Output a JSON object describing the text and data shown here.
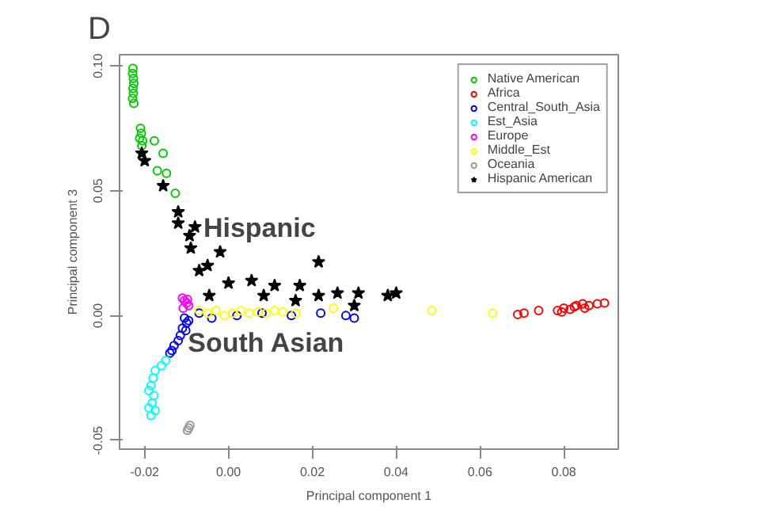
{
  "chart_data": {
    "type": "scatter",
    "title": "D",
    "xlabel": "Principal component 1",
    "ylabel": "Principal component 3",
    "xlim": [
      -0.026,
      0.093
    ],
    "ylim": [
      -0.0535,
      0.1045
    ],
    "xticks": [
      {
        "value": -0.02,
        "label": "-0.02"
      },
      {
        "value": 0,
        "label": "0.00"
      },
      {
        "value": 0.02,
        "label": "0.02"
      },
      {
        "value": 0.04,
        "label": "0.04"
      },
      {
        "value": 0.06,
        "label": "0.06"
      },
      {
        "value": 0.08,
        "label": "0.08"
      }
    ],
    "yticks": [
      {
        "value": -0.05,
        "label": "-0.05"
      },
      {
        "value": 0,
        "label": "0.00"
      },
      {
        "value": 0.05,
        "label": "0.05"
      },
      {
        "value": 0.1,
        "label": "0.10"
      }
    ],
    "grid": false,
    "legend": "top right",
    "annotations": [
      {
        "text": "Hispanic",
        "x": -0.006,
        "y": 0.035
      },
      {
        "text": "South Asian",
        "x": -0.0097,
        "y": -0.011
      }
    ],
    "series": [
      {
        "name": "Native American",
        "color": "#00cc00",
        "marker": "circle",
        "x": [
          -0.0228,
          -0.0229,
          -0.0227,
          -0.0226,
          -0.0228,
          -0.0227,
          -0.0229,
          -0.0226,
          -0.021,
          -0.0208,
          -0.0212,
          -0.0205,
          -0.0207,
          -0.0177,
          -0.0156,
          -0.017,
          -0.0148,
          -0.0127
        ],
        "values": [
          0.099,
          0.097,
          0.095,
          0.093,
          0.091,
          0.089,
          0.087,
          0.085,
          0.075,
          0.073,
          0.071,
          0.07,
          0.068,
          0.07,
          0.065,
          0.058,
          0.057,
          0.049
        ]
      },
      {
        "name": "Africa",
        "color": "#ff0000",
        "marker": "circle",
        "x": [
          0.069,
          0.0705,
          0.074,
          0.0785,
          0.08,
          0.0815,
          0.083,
          0.0845,
          0.086,
          0.088,
          0.0897,
          0.0825,
          0.085,
          0.0795
        ],
        "values": [
          0.0004,
          0.001,
          0.002,
          0.002,
          0.003,
          0.0025,
          0.004,
          0.0047,
          0.004,
          0.0047,
          0.005,
          0.0035,
          0.003,
          0.0015
        ]
      },
      {
        "name": "Central_South_Asia",
        "color": "#0000ff",
        "marker": "circle",
        "x": [
          -0.0105,
          -0.01,
          -0.0095,
          -0.011,
          -0.0102,
          -0.0115,
          -0.012,
          -0.013,
          -0.014,
          -0.0135,
          -0.007,
          -0.004,
          0.002,
          0.008,
          0.015,
          0.022,
          0.028,
          0.03
        ],
        "values": [
          -0.001,
          -0.003,
          -0.002,
          -0.005,
          -0.006,
          -0.008,
          -0.01,
          -0.012,
          -0.015,
          -0.014,
          0.001,
          -0.001,
          0.0,
          0.001,
          0.0,
          0.001,
          0.0,
          -0.001
        ]
      },
      {
        "name": "Est_Asia",
        "color": "#00ffff",
        "marker": "circle",
        "x": [
          -0.015,
          -0.016,
          -0.0175,
          -0.018,
          -0.0185,
          -0.019,
          -0.0178,
          -0.0182,
          -0.019,
          -0.0175,
          -0.0185
        ],
        "values": [
          -0.018,
          -0.02,
          -0.022,
          -0.025,
          -0.028,
          -0.03,
          -0.032,
          -0.035,
          -0.037,
          -0.038,
          -0.04
        ]
      },
      {
        "name": "Europe",
        "color": "#ff00ff",
        "marker": "circle",
        "x": [
          -0.011,
          -0.0105,
          -0.01,
          -0.0095,
          -0.0108,
          -0.0098
        ],
        "values": [
          0.007,
          0.006,
          0.005,
          0.004,
          0.003,
          0.0065
        ]
      },
      {
        "name": "Middle_Est",
        "color": "#ffff00",
        "marker": "circle",
        "x": [
          -0.007,
          -0.005,
          -0.003,
          -0.001,
          0.001,
          0.003,
          0.005,
          0.007,
          0.009,
          0.011,
          0.013,
          0.016,
          0.025,
          0.0485,
          0.063
        ],
        "values": [
          0.002,
          0.001,
          0.002,
          0.0,
          0.001,
          0.002,
          0.001,
          0.0015,
          0.001,
          0.002,
          0.0015,
          0.001,
          0.003,
          0.002,
          0.001
        ]
      },
      {
        "name": "Oceania",
        "color": "#999999",
        "marker": "circle",
        "x": [
          -0.0095,
          -0.0092,
          -0.0098
        ],
        "values": [
          -0.045,
          -0.044,
          -0.046
        ]
      },
      {
        "name": "Hispanic American",
        "color": "#000000",
        "marker": "star",
        "x": [
          -0.0207,
          -0.02,
          -0.0156,
          -0.012,
          -0.012,
          -0.008,
          -0.0093,
          -0.009,
          -0.002,
          -0.005,
          -0.007,
          0.0215,
          0.0,
          0.0055,
          0.011,
          0.017,
          0.026,
          0.031,
          0.038,
          0.04,
          -0.0046,
          0.016,
          0.03,
          0.0084,
          0.0215
        ],
        "values": [
          0.065,
          0.062,
          0.052,
          0.0415,
          0.037,
          0.0355,
          0.032,
          0.027,
          0.0255,
          0.02,
          0.018,
          0.0215,
          0.013,
          0.014,
          0.012,
          0.012,
          0.009,
          0.009,
          0.008,
          0.009,
          0.008,
          0.006,
          0.004,
          0.008,
          0.008
        ]
      }
    ]
  }
}
